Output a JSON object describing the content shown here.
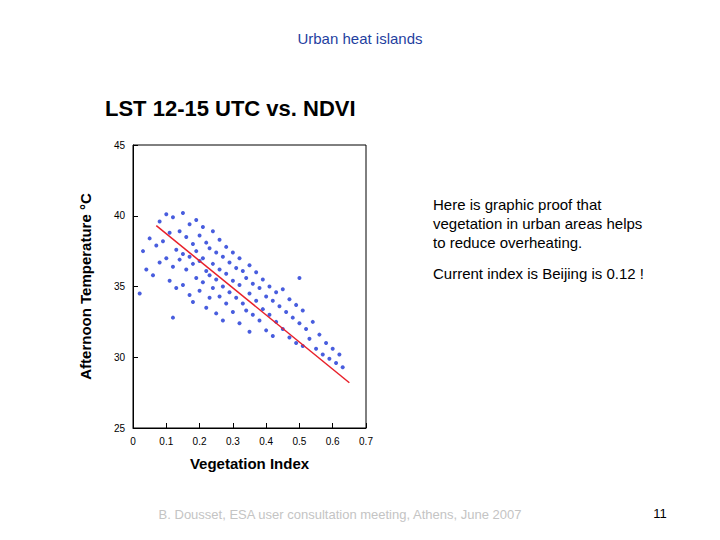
{
  "slide": {
    "title": "Urban heat islands",
    "annotations": [
      "Here is graphic proof that vegetation in urban areas helps to reduce overheating.",
      "Current index is Beijing is 0.12 !"
    ],
    "footer": "B. Dousset, ESA user consultation meeting, Athens, June 2007",
    "page_number": 11
  },
  "chart_data": {
    "type": "scatter",
    "title": "LST 12-15 UTC vs. NDVI",
    "x_label": "Vegetation Index",
    "y_label": "Afternoon Temperature °C",
    "xlim": [
      0,
      0.7
    ],
    "xticks": [
      0,
      0.1,
      0.2,
      0.3,
      0.4,
      0.5,
      0.6,
      0.7
    ],
    "ylim": [
      25,
      45
    ],
    "yticks": [
      25,
      30,
      35,
      40,
      45
    ],
    "grid": false,
    "series": [
      {
        "type": "scatter",
        "color": "#1a35d6",
        "marker": "circle",
        "x": [
          0.02,
          0.03,
          0.04,
          0.05,
          0.06,
          0.07,
          0.08,
          0.08,
          0.09,
          0.1,
          0.1,
          0.11,
          0.11,
          0.12,
          0.12,
          0.12,
          0.13,
          0.13,
          0.14,
          0.14,
          0.15,
          0.15,
          0.15,
          0.16,
          0.16,
          0.17,
          0.17,
          0.17,
          0.18,
          0.18,
          0.18,
          0.19,
          0.19,
          0.19,
          0.2,
          0.2,
          0.2,
          0.21,
          0.21,
          0.21,
          0.22,
          0.22,
          0.22,
          0.23,
          0.23,
          0.23,
          0.24,
          0.24,
          0.24,
          0.25,
          0.25,
          0.25,
          0.26,
          0.26,
          0.26,
          0.27,
          0.27,
          0.27,
          0.28,
          0.28,
          0.28,
          0.29,
          0.29,
          0.3,
          0.3,
          0.3,
          0.31,
          0.31,
          0.32,
          0.32,
          0.32,
          0.33,
          0.33,
          0.34,
          0.34,
          0.35,
          0.35,
          0.35,
          0.36,
          0.36,
          0.37,
          0.37,
          0.38,
          0.38,
          0.39,
          0.39,
          0.4,
          0.4,
          0.41,
          0.41,
          0.42,
          0.42,
          0.43,
          0.43,
          0.44,
          0.45,
          0.45,
          0.46,
          0.47,
          0.47,
          0.48,
          0.49,
          0.49,
          0.5,
          0.5,
          0.51,
          0.51,
          0.52,
          0.53,
          0.54,
          0.55,
          0.56,
          0.57,
          0.58,
          0.59,
          0.6,
          0.61,
          0.62,
          0.63
        ],
        "values": [
          34.5,
          37.5,
          36.2,
          38.4,
          35.8,
          37.9,
          39.6,
          36.7,
          38.2,
          40.1,
          37.0,
          35.4,
          38.8,
          39.9,
          36.4,
          32.8,
          37.6,
          34.9,
          38.9,
          36.9,
          40.2,
          37.3,
          35.1,
          38.5,
          36.2,
          39.4,
          37.1,
          34.4,
          38.0,
          36.6,
          33.9,
          39.7,
          37.5,
          35.6,
          38.6,
          36.8,
          34.7,
          39.2,
          37.0,
          35.3,
          38.1,
          36.1,
          33.5,
          37.7,
          35.8,
          34.2,
          38.9,
          36.6,
          34.9,
          37.4,
          35.5,
          33.1,
          38.3,
          36.2,
          34.3,
          37.1,
          35.0,
          32.6,
          37.8,
          35.9,
          33.8,
          36.7,
          34.6,
          37.4,
          35.4,
          33.2,
          36.3,
          34.2,
          37.0,
          35.1,
          32.4,
          36.1,
          33.8,
          35.6,
          33.3,
          36.5,
          34.5,
          31.8,
          35.2,
          33.0,
          36.0,
          34.0,
          34.9,
          32.6,
          35.5,
          33.4,
          34.3,
          31.9,
          35.0,
          33.0,
          34.0,
          31.5,
          34.6,
          32.5,
          33.6,
          34.8,
          32.0,
          33.2,
          34.1,
          31.4,
          32.8,
          33.7,
          31.0,
          32.4,
          35.6,
          33.3,
          30.8,
          32.0,
          31.3,
          32.5,
          30.6,
          31.6,
          30.2,
          31.0,
          29.9,
          30.6,
          29.6,
          30.2,
          29.3
        ]
      },
      {
        "type": "line",
        "color": "#e8202a",
        "line_style": "solid",
        "x": [
          0.07,
          0.65
        ],
        "values": [
          39.3,
          28.2
        ]
      }
    ]
  }
}
